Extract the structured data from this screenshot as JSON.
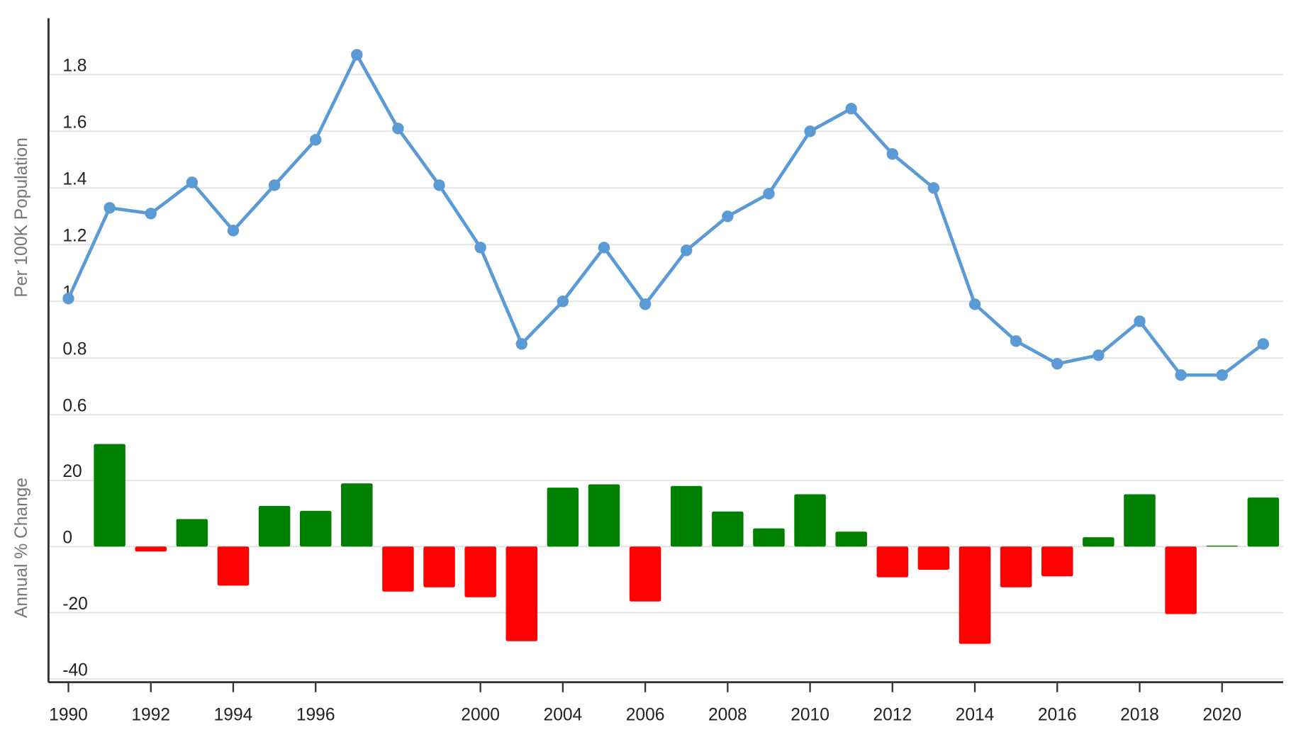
{
  "chart_data": [
    {
      "type": "line",
      "y_label": "Per 100K Population",
      "categories": [
        "1990",
        null,
        "1992",
        null,
        "1994",
        null,
        "1996",
        null,
        null,
        null,
        "2000",
        null,
        "2004",
        null,
        "2006",
        null,
        "2008",
        null,
        "2010",
        null,
        "2012",
        null,
        "2014",
        null,
        "2016",
        null,
        "2018",
        null,
        "2020",
        null
      ],
      "values": [
        1.01,
        1.33,
        1.31,
        1.42,
        1.25,
        1.41,
        1.57,
        1.87,
        1.61,
        1.41,
        1.19,
        0.85,
        1.0,
        1.19,
        0.99,
        1.18,
        1.3,
        1.38,
        1.6,
        1.68,
        1.52,
        1.4,
        0.99,
        0.86,
        0.78,
        0.81,
        0.93,
        0.74,
        0.74,
        0.85
      ],
      "color": "#5b9bd5",
      "ylim": [
        0.57,
        1.99
      ],
      "yticks": [
        0.6,
        0.8,
        1,
        1.2,
        1.4,
        1.6,
        1.8
      ],
      "grid": true
    },
    {
      "type": "bar",
      "y_label": "Annual % Change",
      "values": [
        null,
        31,
        -1.5,
        8.3,
        -11.8,
        12.3,
        10.8,
        19.1,
        -13.6,
        -12.3,
        -15.3,
        -28.6,
        17.8,
        18.8,
        -16.6,
        18.3,
        10.6,
        5.5,
        15.8,
        4.5,
        -9.3,
        -7,
        -29.4,
        -12.3,
        -9,
        2.8,
        15.8,
        -20.4,
        0.3,
        14.8
      ],
      "positive_color": "#008000",
      "negative_color": "#ff0000",
      "ylim": [
        -41,
        36
      ],
      "yticks": [
        -40,
        -20,
        0,
        20
      ],
      "grid": true
    }
  ]
}
